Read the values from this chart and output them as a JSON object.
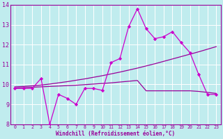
{
  "xlabel": "Windchill (Refroidissement éolien,°C)",
  "xlim": [
    -0.5,
    23.5
  ],
  "ylim": [
    8,
    14
  ],
  "yticks": [
    8,
    9,
    10,
    11,
    12,
    13,
    14
  ],
  "xticks": [
    0,
    1,
    2,
    3,
    4,
    5,
    6,
    7,
    8,
    9,
    10,
    11,
    12,
    13,
    14,
    15,
    16,
    17,
    18,
    19,
    20,
    21,
    22,
    23
  ],
  "bg_color": "#c0ecee",
  "line_color": "#990099",
  "marker_color": "#cc00cc",
  "grid_color": "#aadddd",
  "series1_y": [
    9.8,
    9.8,
    9.8,
    10.3,
    8.0,
    9.5,
    9.3,
    9.0,
    9.8,
    9.8,
    9.7,
    11.1,
    11.3,
    12.9,
    13.8,
    12.8,
    12.3,
    12.4,
    12.65,
    12.1,
    11.6,
    10.5,
    9.5,
    9.5
  ],
  "series2_y": [
    9.88,
    9.9,
    9.93,
    9.97,
    10.02,
    10.08,
    10.14,
    10.21,
    10.28,
    10.36,
    10.44,
    10.53,
    10.62,
    10.72,
    10.82,
    10.93,
    11.04,
    11.16,
    11.28,
    11.4,
    11.52,
    11.64,
    11.77,
    11.9
  ],
  "series3_y": [
    9.82,
    9.84,
    9.86,
    9.88,
    9.9,
    9.92,
    9.94,
    9.96,
    9.99,
    10.02,
    10.05,
    10.08,
    10.12,
    10.16,
    10.2,
    9.68,
    9.68,
    9.68,
    9.68,
    9.68,
    9.68,
    9.65,
    9.6,
    9.55
  ]
}
